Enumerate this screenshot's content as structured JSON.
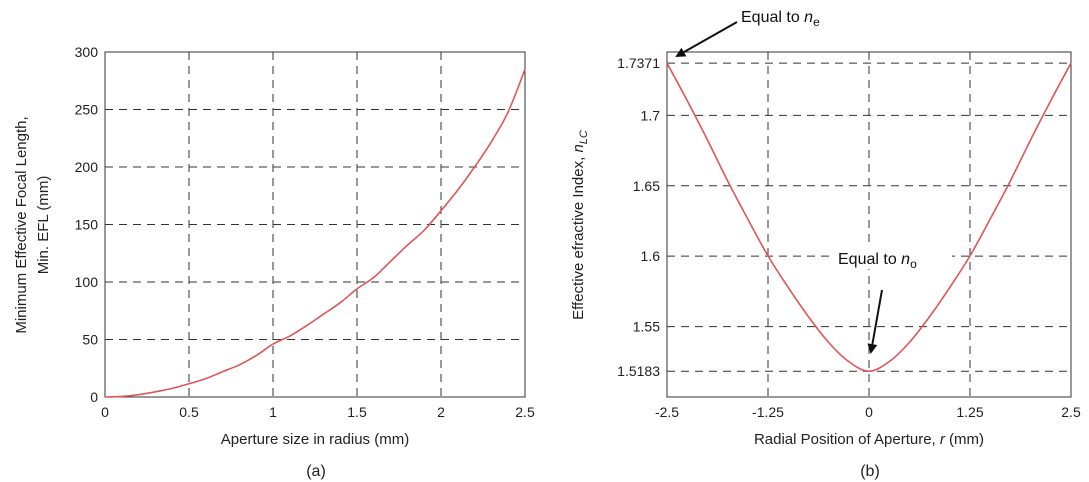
{
  "chart_data": [
    {
      "type": "line",
      "panel_label": "(a)",
      "xlabel": "Aperture size in radius (mm)",
      "ylabel_line1": "Minimum Effective Focal Length,",
      "ylabel_line2": "Min. EFL (mm)",
      "xlim": [
        0,
        2.5
      ],
      "ylim": [
        0,
        300
      ],
      "xticks": [
        0,
        0.5,
        1,
        1.5,
        2,
        2.5
      ],
      "xtick_labels": [
        "0",
        "0.5",
        "1",
        "1.5",
        "2",
        "2.5"
      ],
      "yticks": [
        0,
        50,
        100,
        150,
        200,
        250,
        300
      ],
      "ytick_labels": [
        "0",
        "50",
        "100",
        "150",
        "200",
        "250",
        "300"
      ],
      "grid": true,
      "series": [
        {
          "color": "#e05555",
          "x": [
            0,
            0.1,
            0.2,
            0.3,
            0.4,
            0.5,
            0.6,
            0.7,
            0.8,
            0.9,
            1.0,
            1.1,
            1.2,
            1.3,
            1.4,
            1.5,
            1.6,
            1.7,
            1.8,
            1.9,
            2.0,
            2.1,
            2.2,
            2.3,
            2.4,
            2.5
          ],
          "y": [
            0,
            0.5,
            2,
            4.5,
            7.5,
            11.5,
            16,
            22,
            28,
            36,
            46,
            53,
            62,
            72,
            82,
            94,
            104,
            118,
            132,
            145,
            162,
            180,
            200,
            222,
            248,
            285
          ]
        }
      ]
    },
    {
      "type": "line",
      "panel_label": "(b)",
      "xlabel_prefix": "Radial Position of Aperture, ",
      "xlabel_var": "r",
      "xlabel_suffix": " (mm)",
      "ylabel_prefix": "Effective efractive Index, ",
      "ylabel_var": "n",
      "ylabel_sub": "LC",
      "xlim": [
        -2.5,
        2.5
      ],
      "ylim": [
        1.5,
        1.745
      ],
      "xticks": [
        -2.5,
        -1.25,
        0,
        1.25,
        2.5
      ],
      "xtick_labels": [
        "-2.5",
        "-1.25",
        "0",
        "1.25",
        "2.5"
      ],
      "yticks": [
        1.5183,
        1.55,
        1.6,
        1.65,
        1.7,
        1.7371
      ],
      "ytick_labels": [
        "1.5183",
        "1.55",
        "1.6",
        "1.65",
        "1.7",
        "1.7371"
      ],
      "grid": true,
      "series": [
        {
          "color": "#e05555",
          "x": [
            -2.5,
            -2.25,
            -2.0,
            -1.75,
            -1.5,
            -1.25,
            -1.0,
            -0.75,
            -0.5,
            -0.25,
            0,
            0.25,
            0.5,
            0.75,
            1.0,
            1.25,
            1.5,
            1.75,
            2.0,
            2.25,
            2.5
          ],
          "y": [
            1.7371,
            1.7105,
            1.6826,
            1.6535,
            1.6264,
            1.6002,
            1.5778,
            1.5571,
            1.5388,
            1.5251,
            1.5183,
            1.5251,
            1.5388,
            1.5571,
            1.5778,
            1.6002,
            1.6264,
            1.6535,
            1.6826,
            1.7105,
            1.7371
          ]
        }
      ],
      "annotations": [
        {
          "prefix": "Equal to ",
          "var": "n",
          "sub": "e"
        },
        {
          "prefix": "Equal to ",
          "var": "n",
          "sub": "o"
        }
      ]
    }
  ]
}
